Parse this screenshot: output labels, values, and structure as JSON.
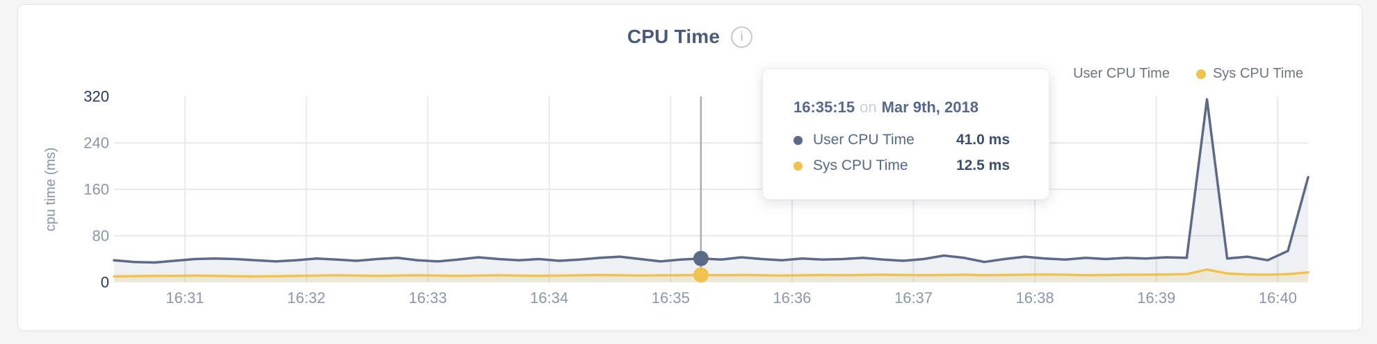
{
  "header": {
    "title": "CPU Time",
    "info_icon": "i"
  },
  "legend": {
    "items": [
      {
        "label": "User CPU Time",
        "color": "#5c6a88"
      },
      {
        "label": "Sys CPU Time",
        "color": "#f0c24e"
      }
    ]
  },
  "tooltip": {
    "time": "16:35:15",
    "preposition": "on",
    "date": "Mar 9th, 2018",
    "rows": [
      {
        "label": "User CPU Time",
        "value": "41.0 ms",
        "color": "#5c6a88"
      },
      {
        "label": "Sys CPU Time",
        "value": "12.5 ms",
        "color": "#f0c24e"
      }
    ]
  },
  "chart_data": {
    "type": "area",
    "title": "CPU Time",
    "xlabel": "",
    "ylabel": "cpu time (ms)",
    "ylim": [
      0,
      320
    ],
    "y_ticks": [
      0,
      80,
      160,
      240,
      320
    ],
    "y_gridlines": [
      80,
      160,
      240
    ],
    "x_ticks": [
      "16:31",
      "16:32",
      "16:33",
      "16:34",
      "16:35",
      "16:36",
      "16:37",
      "16:38",
      "16:39",
      "16:40"
    ],
    "legend_position": "top-right",
    "x": [
      "16:30:25",
      "16:30:35",
      "16:30:45",
      "16:30:55",
      "16:31:05",
      "16:31:15",
      "16:31:25",
      "16:31:35",
      "16:31:45",
      "16:31:55",
      "16:32:05",
      "16:32:15",
      "16:32:25",
      "16:32:35",
      "16:32:45",
      "16:32:55",
      "16:33:05",
      "16:33:15",
      "16:33:25",
      "16:33:35",
      "16:33:45",
      "16:33:55",
      "16:34:05",
      "16:34:15",
      "16:34:25",
      "16:34:35",
      "16:34:45",
      "16:34:55",
      "16:35:05",
      "16:35:15",
      "16:35:25",
      "16:35:35",
      "16:35:45",
      "16:35:55",
      "16:36:05",
      "16:36:15",
      "16:36:25",
      "16:36:35",
      "16:36:45",
      "16:36:55",
      "16:37:05",
      "16:37:15",
      "16:37:25",
      "16:37:35",
      "16:37:45",
      "16:37:55",
      "16:38:05",
      "16:38:15",
      "16:38:25",
      "16:38:35",
      "16:38:45",
      "16:38:55",
      "16:39:05",
      "16:39:15",
      "16:39:25",
      "16:39:35",
      "16:39:45",
      "16:39:55",
      "16:40:05",
      "16:40:15"
    ],
    "series": [
      {
        "name": "User CPU Time",
        "color": "#5c6a88",
        "fill": "rgba(93,107,140,0.10)",
        "values": [
          38,
          35,
          34,
          37,
          40,
          41,
          40,
          38,
          36,
          38,
          41,
          39,
          37,
          40,
          42,
          38,
          36,
          39,
          43,
          40,
          38,
          40,
          37,
          39,
          42,
          44,
          40,
          36,
          39,
          41,
          39,
          43,
          40,
          38,
          41,
          39,
          40,
          42,
          39,
          37,
          40,
          46,
          42,
          35,
          40,
          44,
          41,
          39,
          42,
          40,
          42,
          41,
          43,
          42,
          315,
          41,
          44,
          38,
          54,
          181
        ]
      },
      {
        "name": "Sys CPU Time",
        "color": "#f0c24e",
        "fill": "rgba(240,194,78,0.16)",
        "values": [
          10,
          10.5,
          11,
          11,
          11.5,
          11,
          10.5,
          10,
          10.5,
          11,
          11.5,
          12,
          11.5,
          11,
          11.5,
          12,
          11.5,
          11,
          11.5,
          12,
          11.5,
          11,
          11.5,
          12,
          12.5,
          12,
          11.5,
          12,
          12,
          12.5,
          12,
          12.5,
          12,
          11.5,
          12,
          12.5,
          12,
          12.5,
          13,
          12.5,
          12,
          12.5,
          13,
          12,
          12.5,
          13,
          13.5,
          13,
          12,
          12.5,
          13,
          13,
          13.5,
          14,
          22,
          15,
          13.5,
          13,
          14,
          17
        ]
      }
    ],
    "hover": {
      "index": 29,
      "time": "16:35:15",
      "values": [
        41.0,
        12.5
      ]
    }
  }
}
